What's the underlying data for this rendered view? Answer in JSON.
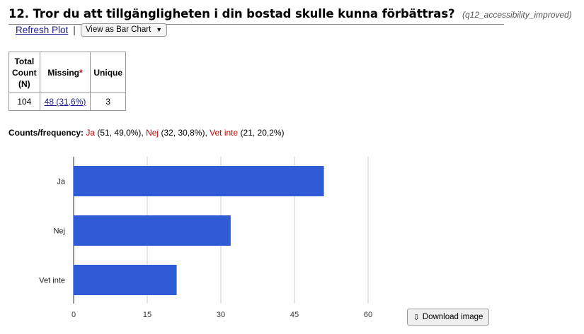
{
  "question": {
    "title": "12. Tror du att tillgängligheten i din bostad skulle kunna förbättras?",
    "variable": "(q12_accessibility_improved)"
  },
  "controls": {
    "refresh_label": "Refresh Plot",
    "separator": "|",
    "view_select_value": "View as Bar Chart"
  },
  "stats_table": {
    "headers": {
      "total_line1": "Total",
      "total_line2": "Count",
      "total_line3": "(N)",
      "missing": "Missing",
      "missing_mark": "*",
      "unique": "Unique"
    },
    "values": {
      "total": "104",
      "missing": "48 (31,6%)",
      "unique": "3"
    }
  },
  "counts": {
    "label": "Counts/frequency:",
    "items": [
      {
        "name": "Ja",
        "detail": " (51, 49,0%), "
      },
      {
        "name": "Nej",
        "detail": " (32, 30,8%), "
      },
      {
        "name": "Vet inte",
        "detail": " (21, 20,2%)"
      }
    ]
  },
  "colors": {
    "bar": "#2f5bd6",
    "grid": "#cccccc",
    "accent_red": "#cc0000"
  },
  "chart_data": {
    "type": "bar",
    "orientation": "horizontal",
    "categories": [
      "Ja",
      "Nej",
      "Vet inte"
    ],
    "values": [
      51,
      32,
      21
    ],
    "xlim": [
      0,
      60
    ],
    "xticks": [
      "0",
      "15",
      "30",
      "45",
      "60"
    ],
    "grid": true
  },
  "download": {
    "label": "Download image",
    "icon": "download-icon"
  }
}
